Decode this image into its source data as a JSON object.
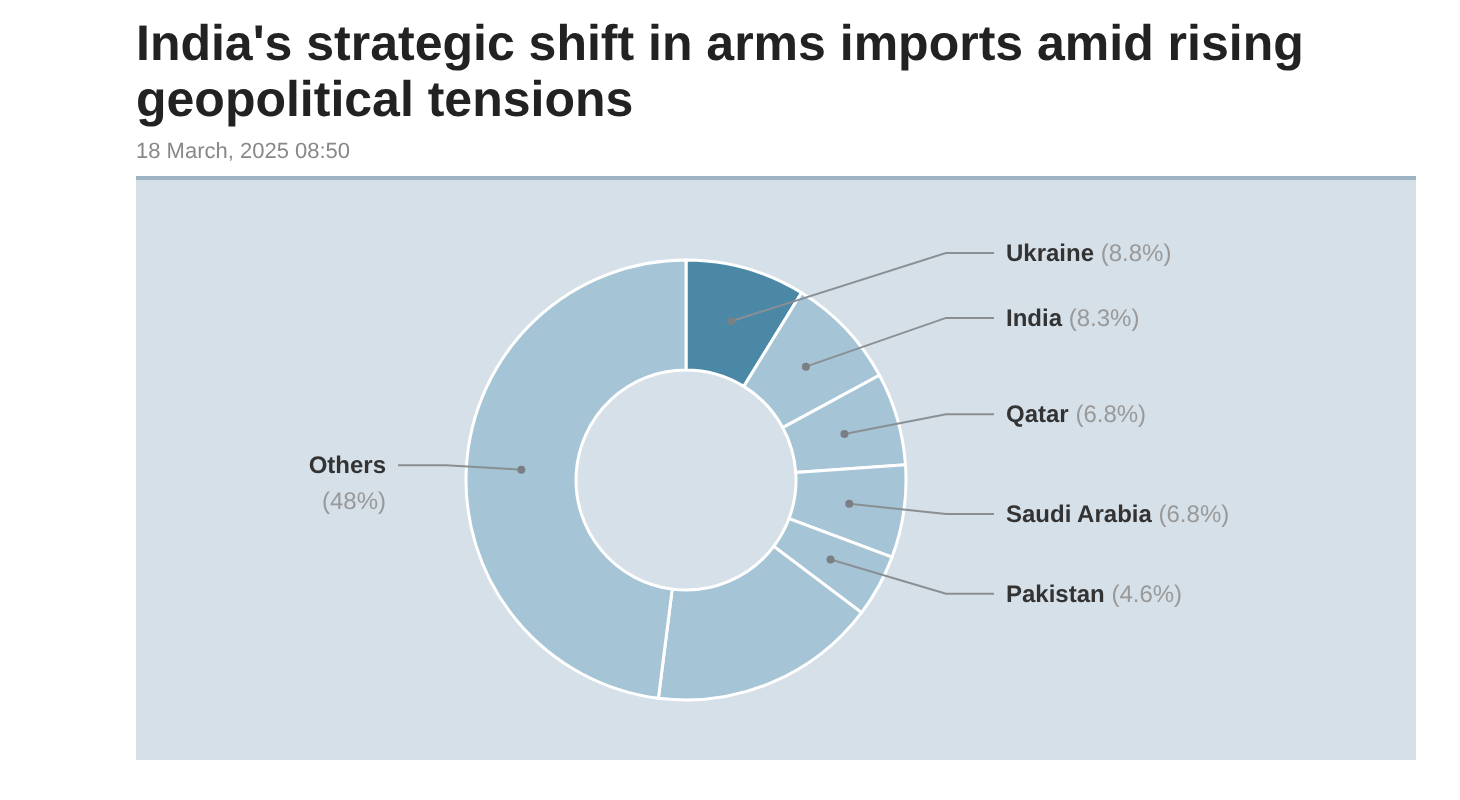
{
  "chart_data": {
    "type": "donut",
    "title": "India's strategic shift in arms imports amid rising geopolitical tensions",
    "annotations": [
      "18 March, 2025 08:50"
    ],
    "categories": [
      "Ukraine",
      "India",
      "Qatar",
      "Saudi Arabia",
      "Pakistan",
      null,
      "Others"
    ],
    "values": [
      8.8,
      8.3,
      6.8,
      6.8,
      4.6,
      16.7,
      48
    ],
    "value_labels": [
      "(8.8%)",
      "(8.3%)",
      "(6.8%)",
      "(6.8%)",
      "(4.6%)",
      null,
      "(48%)"
    ],
    "colors": [
      "#4a88a6",
      "#a5c4d6",
      "#a5c4d6",
      "#a5c4d6",
      "#a5c4d6",
      "#a5c4d6",
      "#a5c4d6"
    ]
  }
}
